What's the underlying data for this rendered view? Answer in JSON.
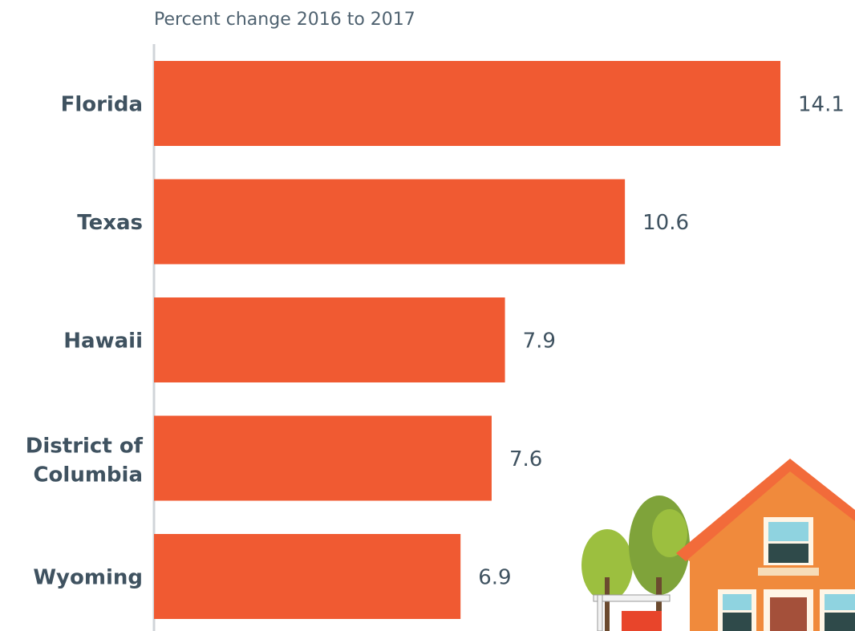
{
  "chart_data": {
    "type": "bar",
    "orientation": "horizontal",
    "subtitle": "Percent change 2016 to 2017",
    "categories": [
      "Florida",
      "Texas",
      "Hawaii",
      "District of Columbia",
      "Wyoming"
    ],
    "values": [
      14.1,
      10.6,
      7.9,
      7.6,
      6.9
    ],
    "color": "#f05a32",
    "xlim": [
      0,
      14.1
    ]
  }
}
